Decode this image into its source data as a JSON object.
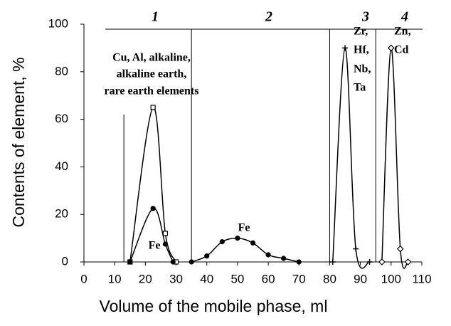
{
  "chart_data": {
    "type": "line",
    "x_label": "Volume of the mobile phase, ml",
    "y_label": "Contents of element, %",
    "xlim": [
      0,
      110
    ],
    "xticks": [
      0,
      10,
      20,
      30,
      40,
      50,
      60,
      70,
      80,
      90,
      100,
      110
    ],
    "ylim": [
      0,
      100
    ],
    "yticks": [
      0,
      20,
      40,
      60,
      80,
      100
    ],
    "series": [
      {
        "color": "#000000",
        "marker": "square",
        "x": [
          15,
          22.5,
          26.5,
          30
        ],
        "values": [
          0,
          65,
          12,
          0
        ]
      },
      {
        "color": "#000000",
        "marker": "circle",
        "x": [
          15,
          22.5,
          26.5,
          29
        ],
        "values": [
          0,
          22.5,
          7.5,
          0
        ]
      },
      {
        "color": "#000000",
        "marker": "circle",
        "x": [
          35,
          40,
          45,
          50,
          55,
          60,
          65,
          70
        ],
        "values": [
          0,
          2.5,
          8.5,
          10,
          8,
          3,
          1.5,
          0
        ]
      },
      {
        "color": "#000000",
        "marker": "plus",
        "x": [
          81,
          85,
          88.5,
          93
        ],
        "values": [
          0,
          90,
          5.5,
          0
        ]
      },
      {
        "color": "#000000",
        "marker": "diamond",
        "x": [
          97,
          100,
          103,
          105.5
        ],
        "values": [
          0,
          90,
          5.5,
          0
        ]
      }
    ],
    "sections": [
      {
        "label": "1",
        "x": 13,
        "top": 62
      },
      {
        "label": "2",
        "x": 35,
        "top": 100
      },
      {
        "label": "3",
        "x": 80,
        "top": 100
      },
      {
        "label": "4",
        "x": 95,
        "top": 100
      }
    ],
    "annotations": {
      "group1": [
        "Cu, Al, alkaline,",
        "alkaline earth,",
        "rare earth elements"
      ],
      "fe1": "Fe",
      "fe2": "Fe",
      "zr": [
        "Zr,",
        "Hf,",
        "Nb,",
        "Ta"
      ],
      "zn": [
        "Zn,",
        "Cd"
      ]
    }
  }
}
